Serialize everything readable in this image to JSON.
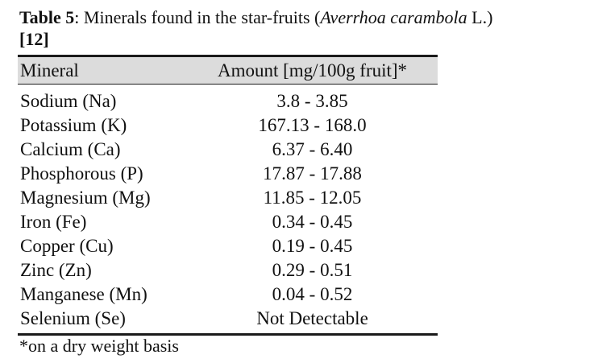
{
  "caption": {
    "label": "Table 5",
    "text_before": ": Minerals found in the star-fruits (",
    "species": "Averrhoa carambola",
    "text_after": " L.)",
    "reference": "[12]"
  },
  "table": {
    "headers": {
      "mineral": "Mineral",
      "amount": "Amount [mg/100g fruit]*"
    },
    "rows": [
      {
        "mineral": "Sodium (Na)",
        "amount": "3.8 - 3.85"
      },
      {
        "mineral": "Potassium (K)",
        "amount": "167.13 - 168.0"
      },
      {
        "mineral": "Calcium (Ca)",
        "amount": "6.37 - 6.40"
      },
      {
        "mineral": "Phosphorous (P)",
        "amount": "17.87 - 17.88"
      },
      {
        "mineral": "Magnesium (Mg)",
        "amount": "11.85 - 12.05"
      },
      {
        "mineral": "Iron (Fe)",
        "amount": "0.34 - 0.45"
      },
      {
        "mineral": "Copper (Cu)",
        "amount": "0.19 - 0.45"
      },
      {
        "mineral": "Zinc (Zn)",
        "amount": "0.29 - 0.51"
      },
      {
        "mineral": "Manganese (Mn)",
        "amount": "0.04 - 0.52"
      },
      {
        "mineral": "Selenium (Se)",
        "amount": "Not Detectable"
      }
    ]
  },
  "footnote": "*on a dry weight basis"
}
